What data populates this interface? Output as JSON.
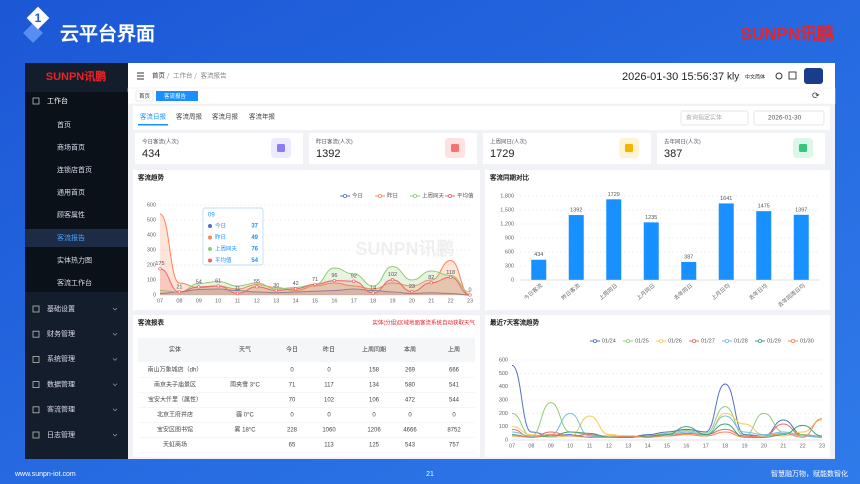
{
  "slide": {
    "badge": "1",
    "title": "云平台界面",
    "logo": "SUNPN讯鹏",
    "footer": {
      "url": "www.sunpn-iot.com",
      "page": 21,
      "slogan": "智慧融万物，赋能数智化"
    }
  },
  "sidebar": {
    "logo": "SUNPN讯鹏",
    "menu": [
      {
        "label": "工作台",
        "children": [
          "首页",
          "商场首页",
          "连锁店首页",
          "通用首页",
          "顾客属性",
          "客流报告",
          "实体热力图",
          "客流工作台"
        ]
      },
      {
        "label": "基础设置"
      },
      {
        "label": "财务管理"
      },
      {
        "label": "系统管理"
      },
      {
        "label": "数据管理"
      },
      {
        "label": "客流管理"
      },
      {
        "label": "日志管理"
      }
    ]
  },
  "topbar": {
    "breadcrumb": [
      "首页",
      "工作台",
      "客流报告"
    ],
    "datetime": "2026-01-30 15:56:37",
    "user": "kly",
    "language": "中文简体"
  },
  "tags": [
    "首页",
    "客流报告"
  ],
  "tabs": [
    "客流日报",
    "客流周报",
    "客流月报",
    "客流年报"
  ],
  "filters": {
    "entity_placeholder": "查询指定实体",
    "date": "2026-01-30"
  },
  "stats": [
    {
      "label": "今日客流(人次)",
      "value": 434,
      "color": "#8b7cf6",
      "bg": "#ede9fe"
    },
    {
      "label": "昨日客流(人次)",
      "value": 1392,
      "color": "#f87171",
      "bg": "#fee2e2"
    },
    {
      "label": "上周同日(人次)",
      "value": 1729,
      "color": "#f5b400",
      "bg": "#fff3d1"
    },
    {
      "label": "去年同日(人次)",
      "value": 387,
      "color": "#34c77b",
      "bg": "#dcf7e8"
    }
  ],
  "chart_data": [
    {
      "type": "line",
      "title": "客流趋势",
      "watermark": "SUNPN讯鹏",
      "area": true,
      "grid": true,
      "categories": [
        "07",
        "08",
        "09",
        "10",
        "11",
        "12",
        "13",
        "14",
        "15",
        "16",
        "17",
        "18",
        "19",
        "20",
        "21",
        "22",
        "23"
      ],
      "ylim": [
        0,
        600
      ],
      "yticks": [
        0,
        100,
        200,
        300,
        400,
        500,
        600
      ],
      "series": [
        {
          "name": "今日",
          "color": "#5470c6",
          "values": [
            10,
            20,
            37,
            40,
            30,
            20,
            15,
            20,
            25,
            30,
            40,
            30,
            20,
            10,
            15,
            10,
            0
          ]
        },
        {
          "name": "昨日",
          "color": "#fc8452",
          "values": [
            540,
            80,
            49,
            60,
            40,
            70,
            50,
            30,
            60,
            80,
            60,
            40,
            80,
            60,
            100,
            230,
            0
          ]
        },
        {
          "name": "上周同天",
          "color": "#91cc75",
          "values": [
            30,
            20,
            76,
            90,
            60,
            80,
            40,
            50,
            70,
            180,
            140,
            60,
            190,
            100,
            160,
            130,
            20
          ]
        },
        {
          "name": "平均值",
          "color": "#ee6666",
          "show_values": true,
          "values": [
            175,
            21,
            54,
            61,
            11,
            55,
            30,
            42,
            71,
            96,
            92,
            14,
            102,
            23,
            82,
            118,
            0
          ]
        }
      ]
    },
    {
      "type": "bar",
      "title": "客流同期对比",
      "color": "#1890ff",
      "grid": true,
      "categories": [
        "今日客流",
        "昨日客流",
        "上周同日",
        "上月同日",
        "去年同日",
        "上月日均",
        "去年日均",
        "去年同周日均"
      ],
      "values": [
        434,
        1392,
        1729,
        1235,
        387,
        1641,
        1475,
        1397
      ],
      "ylim": [
        0,
        1800
      ],
      "yticks": [
        0,
        300,
        600,
        900,
        {
          "value": 1200,
          "label": "1,200"
        },
        {
          "value": 1500,
          "label": "1,500"
        },
        {
          "value": 1800,
          "label": "1,800"
        }
      ]
    },
    {
      "type": "line",
      "title": "最近7天客流趋势",
      "area": false,
      "grid": true,
      "categories": [
        "07",
        "08",
        "09",
        "10",
        "11",
        "12",
        "13",
        "14",
        "15",
        "16",
        "17",
        "18",
        "19",
        "20",
        "21",
        "22",
        "23"
      ],
      "ylim": [
        0,
        600
      ],
      "yticks": [
        0,
        100,
        200,
        300,
        400,
        500,
        600
      ],
      "series": [
        {
          "name": "01/24",
          "color": "#5470c6",
          "values": [
            560,
            60,
            30,
            40,
            20,
            30,
            20,
            40,
            60,
            80,
            60,
            420,
            40,
            30,
            150,
            40,
            20
          ]
        },
        {
          "name": "01/25",
          "color": "#91cc75",
          "values": [
            200,
            30,
            280,
            60,
            40,
            30,
            20,
            30,
            50,
            70,
            50,
            250,
            30,
            200,
            60,
            40,
            30
          ]
        },
        {
          "name": "01/26",
          "color": "#fac858",
          "values": [
            100,
            40,
            20,
            30,
            180,
            40,
            30,
            20,
            40,
            60,
            30,
            200,
            120,
            40,
            30,
            60,
            150
          ]
        },
        {
          "name": "01/27",
          "color": "#ee6666",
          "values": [
            80,
            20,
            60,
            30,
            40,
            20,
            20,
            30,
            30,
            50,
            40,
            80,
            30,
            30,
            120,
            30,
            20
          ]
        },
        {
          "name": "01/28",
          "color": "#73c0de",
          "values": [
            60,
            30,
            40,
            200,
            30,
            20,
            30,
            20,
            40,
            60,
            40,
            180,
            60,
            40,
            60,
            30,
            20
          ]
        },
        {
          "name": "01/29",
          "color": "#3ba272",
          "values": [
            40,
            20,
            30,
            60,
            50,
            20,
            20,
            30,
            40,
            100,
            40,
            120,
            20,
            20,
            40,
            110,
            30
          ]
        },
        {
          "name": "01/30",
          "color": "#fc8452",
          "values": [
            30,
            20,
            40,
            30,
            20,
            20,
            30,
            20,
            30,
            40,
            30,
            60,
            20,
            30,
            50,
            20,
            160
          ]
        }
      ]
    }
  ],
  "table": {
    "title": "客流报表",
    "note": "实体(分组)区域地面客流系统自动获取天气",
    "columns": [
      "实体",
      "天气",
      "今日",
      "昨日",
      "上周同期",
      "本周",
      "上周"
    ],
    "rows": [
      [
        "南山万象城店（dh）",
        null,
        0,
        0,
        158,
        269,
        666
      ],
      [
        "南京夫子庙景区",
        "雨夹雪 3°C",
        71,
        117,
        134,
        580,
        541
      ],
      [
        "宝安大仟里（属性）",
        null,
        70,
        102,
        106,
        472,
        544
      ],
      [
        "北京王府井店",
        "霾 0°C",
        0,
        0,
        0,
        0,
        0
      ],
      [
        "宝安区图书馆",
        "雾 18°C",
        228,
        1060,
        1206,
        4666,
        8752
      ],
      [
        "天虹商场",
        null,
        65,
        113,
        125,
        543,
        757
      ]
    ]
  }
}
